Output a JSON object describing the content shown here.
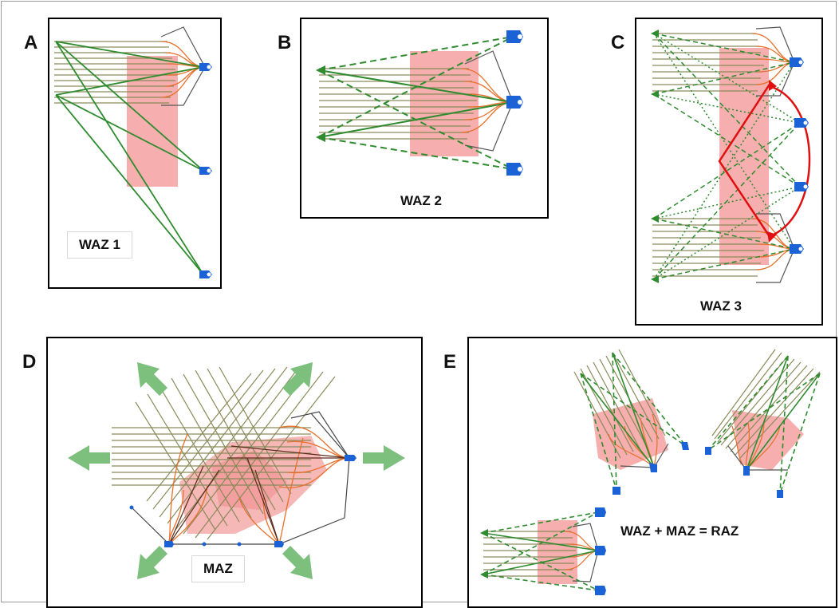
{
  "panels": {
    "a": {
      "label": "A",
      "caption": "WAZ 1"
    },
    "b": {
      "label": "B",
      "caption": "WAZ 2"
    },
    "c": {
      "label": "C",
      "caption": "WAZ 3"
    },
    "d": {
      "label": "D",
      "caption": "MAZ"
    },
    "e": {
      "label": "E",
      "caption": "WAZ + MAZ = RAZ"
    }
  },
  "colors": {
    "receiver_lines": "#8a8a5a",
    "raypaths": "#e8702a",
    "illumination": "#f4a0a0",
    "azimuth_lines": "#2e8b2e",
    "direction_arrows": "#7dbf7d",
    "vessel": "#1b62d6",
    "transition_arrow": "#e01010",
    "frame": "#000000"
  },
  "icons": [
    "vessel-icon",
    "direction-arrow-icon"
  ]
}
